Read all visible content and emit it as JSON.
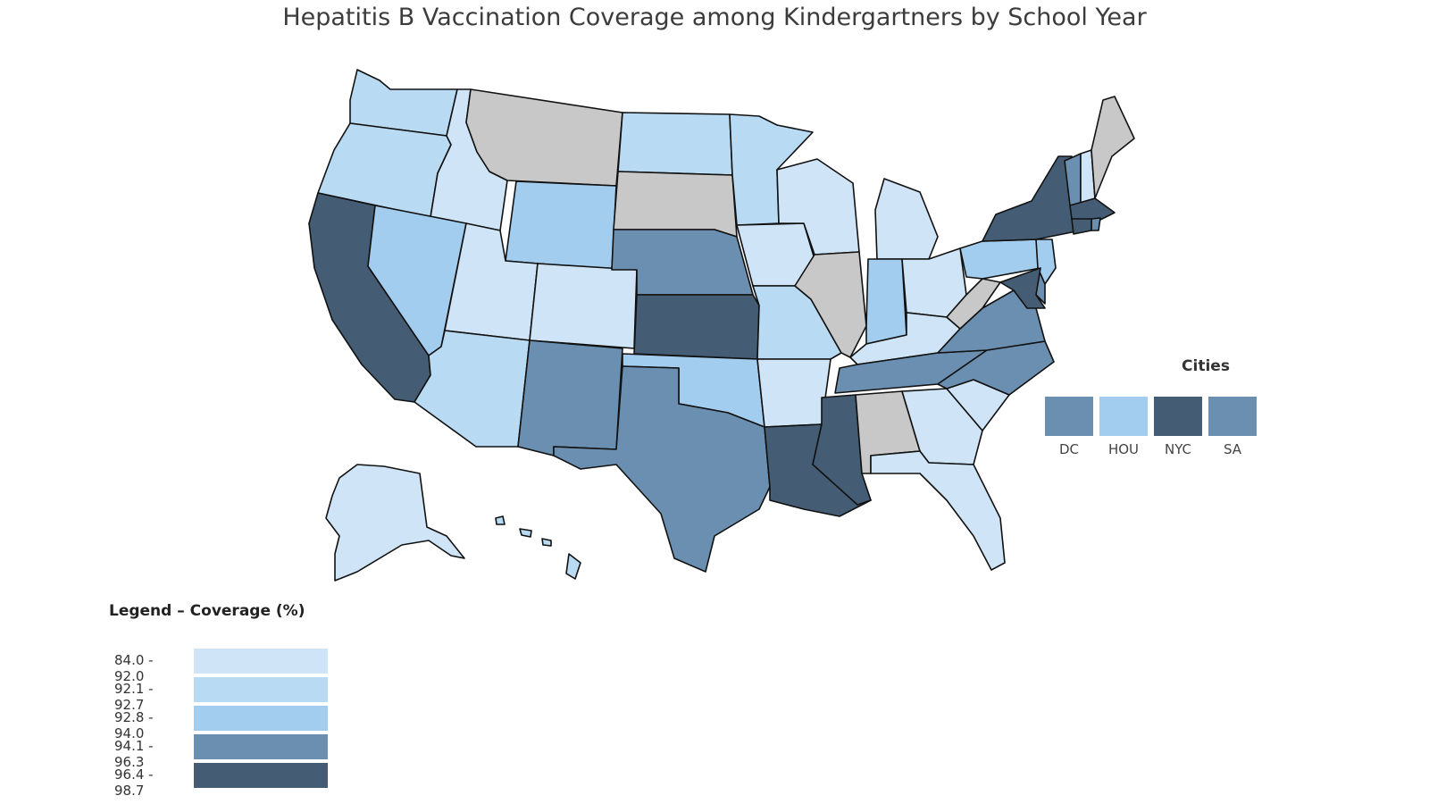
{
  "title": "Hepatitis B Vaccination Coverage among Kindergartners by School Year",
  "colors": {
    "c1": "#cfe5f7",
    "c2": "#b8dbf3",
    "c3": "#a3cdef",
    "c4": "#6a8fb0",
    "c5": "#445d74",
    "nodata": "#c8c8c8"
  },
  "legend": {
    "title": "Legend – Coverage (%)",
    "items": [
      {
        "label": "84.0 - 92.0",
        "class": "c1"
      },
      {
        "label": "92.1 - 92.7",
        "class": "c2"
      },
      {
        "label": "92.8 - 94.0",
        "class": "c3"
      },
      {
        "label": "94.1 - 96.3",
        "class": "c4"
      },
      {
        "label": "96.4 - 98.7",
        "class": "c5"
      }
    ]
  },
  "cities": {
    "title": "Cities",
    "items": [
      {
        "label": "DC",
        "class": "c4"
      },
      {
        "label": "HOU",
        "class": "c3"
      },
      {
        "label": "NYC",
        "class": "c5"
      },
      {
        "label": "SA",
        "class": "c4"
      }
    ]
  },
  "states": [
    {
      "id": "WA",
      "class": "c2"
    },
    {
      "id": "OR",
      "class": "c2"
    },
    {
      "id": "CA",
      "class": "c5"
    },
    {
      "id": "ID",
      "class": "c1"
    },
    {
      "id": "NV",
      "class": "c3"
    },
    {
      "id": "MT",
      "class": "nodata"
    },
    {
      "id": "WY",
      "class": "c3"
    },
    {
      "id": "UT",
      "class": "c1"
    },
    {
      "id": "AZ",
      "class": "c2"
    },
    {
      "id": "CO",
      "class": "c1"
    },
    {
      "id": "NM",
      "class": "c4"
    },
    {
      "id": "ND",
      "class": "c2"
    },
    {
      "id": "SD",
      "class": "nodata"
    },
    {
      "id": "NE",
      "class": "c4"
    },
    {
      "id": "KS",
      "class": "c5"
    },
    {
      "id": "OK",
      "class": "c3"
    },
    {
      "id": "TX",
      "class": "c4"
    },
    {
      "id": "MN",
      "class": "c2"
    },
    {
      "id": "IA",
      "class": "c1"
    },
    {
      "id": "MO",
      "class": "c2"
    },
    {
      "id": "AR",
      "class": "c1"
    },
    {
      "id": "LA",
      "class": "c5"
    },
    {
      "id": "WI",
      "class": "c1"
    },
    {
      "id": "IL",
      "class": "nodata"
    },
    {
      "id": "MI",
      "class": "c1"
    },
    {
      "id": "IN",
      "class": "c3"
    },
    {
      "id": "OH",
      "class": "c1"
    },
    {
      "id": "KY",
      "class": "c1"
    },
    {
      "id": "TN",
      "class": "c4"
    },
    {
      "id": "MS",
      "class": "c5"
    },
    {
      "id": "AL",
      "class": "nodata"
    },
    {
      "id": "GA",
      "class": "c1"
    },
    {
      "id": "FL",
      "class": "c1"
    },
    {
      "id": "SC",
      "class": "c1"
    },
    {
      "id": "NC",
      "class": "c4"
    },
    {
      "id": "VA",
      "class": "c4"
    },
    {
      "id": "WV",
      "class": "nodata"
    },
    {
      "id": "PA",
      "class": "c3"
    },
    {
      "id": "NY",
      "class": "c5"
    },
    {
      "id": "VT",
      "class": "c4"
    },
    {
      "id": "NH",
      "class": "c1"
    },
    {
      "id": "ME",
      "class": "nodata"
    },
    {
      "id": "MA",
      "class": "c5"
    },
    {
      "id": "RI",
      "class": "c4"
    },
    {
      "id": "CT",
      "class": "c5"
    },
    {
      "id": "NJ",
      "class": "c3"
    },
    {
      "id": "DE",
      "class": "c4"
    },
    {
      "id": "MD",
      "class": "c5"
    },
    {
      "id": "AK",
      "class": "c1"
    },
    {
      "id": "HI",
      "class": "c2"
    }
  ]
}
